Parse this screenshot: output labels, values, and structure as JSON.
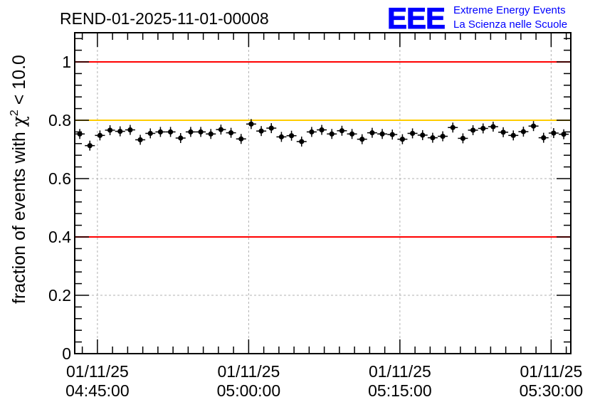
{
  "chart_data": {
    "type": "scatter",
    "title": "REND-01-2025-11-01-00008",
    "ylabel_prefix": "fraction of events with ",
    "ylabel_symbol": "χ",
    "ylabel_sup": "2",
    "ylabel_suffix": " < 10.0",
    "xlabel": "",
    "ylim": [
      0,
      1.1
    ],
    "xlim_minutes": [
      0,
      98.4
    ],
    "grid": true,
    "y_ticks": [
      {
        "value": 0,
        "label": "0"
      },
      {
        "value": 0.2,
        "label": "0.2"
      },
      {
        "value": 0.4,
        "label": "0.4"
      },
      {
        "value": 0.6,
        "label": "0.6"
      },
      {
        "value": 0.8,
        "label": "0.8"
      },
      {
        "value": 1,
        "label": "1"
      }
    ],
    "x_ticks": [
      {
        "minutes": 4.5,
        "date": "01/11/25",
        "time": "04:45:00"
      },
      {
        "minutes": 34.5,
        "date": "01/11/25",
        "time": "05:00:00"
      },
      {
        "minutes": 64.5,
        "date": "01/11/25",
        "time": "05:15:00"
      },
      {
        "minutes": 94.5,
        "date": "01/11/25",
        "time": "05:30:00"
      }
    ],
    "reference_lines": [
      {
        "value": 1.0,
        "color": "#ff0000"
      },
      {
        "value": 0.8,
        "color": "#ffcc00"
      },
      {
        "value": 0.4,
        "color": "#ff0000"
      }
    ],
    "series": [
      {
        "name": "fraction",
        "color": "#000000",
        "x_minutes": [
          1,
          3,
          5,
          7,
          9,
          11,
          13,
          15,
          17,
          19,
          21,
          23,
          25,
          27,
          29,
          31,
          33,
          35,
          37,
          39,
          41,
          43,
          45,
          47,
          49,
          51,
          53,
          55,
          57,
          59,
          61,
          63,
          65,
          67,
          69,
          71,
          73,
          75,
          77,
          79,
          81,
          83,
          85,
          87,
          89,
          91,
          93,
          95,
          97
        ],
        "values": [
          0.753,
          0.713,
          0.748,
          0.766,
          0.762,
          0.767,
          0.733,
          0.755,
          0.76,
          0.76,
          0.739,
          0.76,
          0.76,
          0.753,
          0.768,
          0.757,
          0.736,
          0.787,
          0.763,
          0.773,
          0.743,
          0.747,
          0.727,
          0.76,
          0.767,
          0.753,
          0.764,
          0.753,
          0.735,
          0.757,
          0.753,
          0.751,
          0.735,
          0.755,
          0.749,
          0.74,
          0.745,
          0.775,
          0.738,
          0.766,
          0.772,
          0.778,
          0.759,
          0.748,
          0.761,
          0.78,
          0.74,
          0.756,
          0.752
        ]
      }
    ]
  },
  "logo": {
    "text": "EEE",
    "line1": "Extreme Energy Events",
    "line2": "La Scienza nelle Scuole",
    "color": "#0000ff"
  }
}
